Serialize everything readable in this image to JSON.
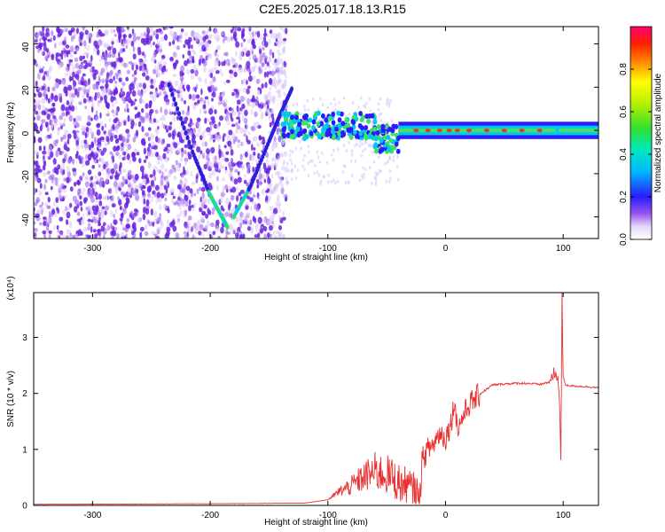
{
  "title": "C2E5.2025.017.18.13.R15",
  "colors": {
    "spectrogram_points": "#7a2be2",
    "snr_line": "#e83030",
    "frame": "#000000"
  },
  "chart_data": [
    {
      "type": "heatmap",
      "xlabel": "Height of straight line (km)",
      "ylabel": "Frequency (Hz)",
      "xlim": [
        -350,
        130
      ],
      "ylim": [
        -50,
        48
      ],
      "xticks": [
        -300,
        -200,
        -100,
        0,
        100
      ],
      "yticks": [
        -40,
        -20,
        0,
        20,
        40
      ],
      "colorbar": {
        "label": "Normalized spectral amplitude",
        "range": [
          0,
          1
        ],
        "ticks": [
          0.0,
          0.2,
          0.4,
          0.6,
          0.8
        ]
      },
      "features": {
        "descending_trace": {
          "x": [
            -235,
            -215,
            -200,
            -190,
            -185
          ],
          "y": [
            21,
            -10,
            -30,
            -40,
            -45
          ]
        },
        "ascending_trace": {
          "x": [
            -180,
            -165,
            -150,
            -140,
            -130
          ],
          "y": [
            -40,
            -25,
            -5,
            8,
            20
          ]
        },
        "central_band": {
          "x_start": -140,
          "x_end": 130,
          "y_center": 0,
          "half_width": 3
        }
      }
    },
    {
      "type": "line",
      "xlabel": "Height of straight line (km)",
      "ylabel": "SNR (10 * v/v)",
      "y_multiplier": "(x10⁴)",
      "xlim": [
        -350,
        130
      ],
      "ylim": [
        0,
        3.8
      ],
      "xticks": [
        -300,
        -200,
        -100,
        0,
        100
      ],
      "yticks": [
        0,
        1,
        2,
        3
      ],
      "series": [
        {
          "x": [
            -350,
            -200,
            -120,
            -100,
            -90,
            -80,
            -70,
            -60,
            -50,
            -45,
            -40,
            -35,
            -30,
            -25,
            -22,
            -20,
            -15,
            -10,
            -5,
            0,
            5,
            8,
            10,
            15,
            20,
            30,
            40,
            50,
            60,
            70,
            80,
            88,
            92,
            95,
            97,
            98,
            99,
            100,
            102,
            105,
            110,
            120,
            130
          ],
          "y": [
            0.02,
            0.03,
            0.04,
            0.1,
            0.25,
            0.35,
            0.5,
            0.6,
            0.55,
            0.5,
            0.4,
            0.35,
            0.3,
            0.2,
            0.15,
            0.8,
            1.0,
            1.1,
            1.3,
            1.2,
            1.5,
            1.9,
            1.35,
            1.6,
            1.8,
            2.0,
            2.15,
            2.17,
            2.18,
            2.18,
            2.16,
            2.2,
            2.3,
            2.4,
            1.8,
            0.7,
            3.7,
            2.3,
            2.15,
            2.14,
            2.13,
            2.12,
            2.1
          ]
        }
      ]
    }
  ]
}
